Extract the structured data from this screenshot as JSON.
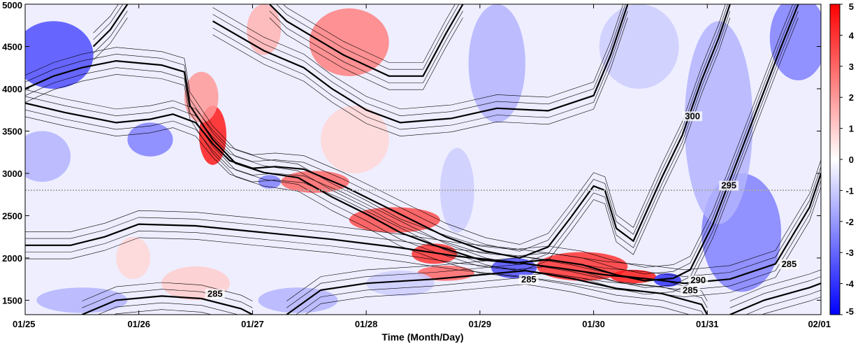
{
  "chart_data": {
    "type": "heatmap",
    "title": "",
    "xlabel": "Time (Month/Day)",
    "ylabel": "",
    "x_ticks": [
      "01/25",
      "01/26",
      "01/27",
      "01/28",
      "01/29",
      "01/30",
      "01/31",
      "02/01"
    ],
    "y_ticks": [
      1500,
      2000,
      2500,
      3000,
      3500,
      4000,
      4500,
      5000
    ],
    "xlim": [
      0,
      7
    ],
    "ylim": [
      1330,
      5000
    ],
    "colorbar": {
      "ticks": [
        5,
        4,
        3,
        2,
        1,
        0,
        -1,
        -2,
        -3,
        -4,
        -5
      ],
      "range": [
        -5,
        5
      ],
      "colors": {
        "positive": "#ff0000",
        "neutral": "#ffffff",
        "negative": "#0000ff"
      }
    },
    "reference_line": {
      "y": 2800,
      "style": "dotted",
      "color": "#aaaaaa"
    },
    "contour_labels": [
      {
        "text": "300",
        "x": 5.87,
        "y": 3650
      },
      {
        "text": "295",
        "x": 6.19,
        "y": 2830
      },
      {
        "text": "285",
        "x": 1.67,
        "y": 1550
      },
      {
        "text": "285",
        "x": 4.43,
        "y": 1720
      },
      {
        "text": "290",
        "x": 5.92,
        "y": 1710
      },
      {
        "text": "285",
        "x": 5.85,
        "y": 1590
      },
      {
        "text": "285",
        "x": 6.72,
        "y": 1900
      }
    ],
    "anomaly_blobs": [
      {
        "x": 1.65,
        "y": 3450,
        "rx": 0.12,
        "ry": 350,
        "value": 4.5
      },
      {
        "x": 1.55,
        "y": 3900,
        "rx": 0.15,
        "ry": 300,
        "value": 2
      },
      {
        "x": 2.1,
        "y": 4700,
        "rx": 0.15,
        "ry": 300,
        "value": 1.5
      },
      {
        "x": 2.85,
        "y": 4550,
        "rx": 0.35,
        "ry": 400,
        "value": 2.5
      },
      {
        "x": 2.55,
        "y": 2900,
        "rx": 0.3,
        "ry": 130,
        "value": 3
      },
      {
        "x": 3.25,
        "y": 2450,
        "rx": 0.4,
        "ry": 150,
        "value": 3.5
      },
      {
        "x": 3.6,
        "y": 2050,
        "rx": 0.2,
        "ry": 120,
        "value": 4
      },
      {
        "x": 3.7,
        "y": 1820,
        "rx": 0.25,
        "ry": 90,
        "value": 3
      },
      {
        "x": 4.9,
        "y": 1900,
        "rx": 0.4,
        "ry": 170,
        "value": 4
      },
      {
        "x": 5.35,
        "y": 1780,
        "rx": 0.2,
        "ry": 80,
        "value": 4.5
      },
      {
        "x": 0.95,
        "y": 2000,
        "rx": 0.15,
        "ry": 250,
        "value": 0.8
      },
      {
        "x": 1.5,
        "y": 1700,
        "rx": 0.3,
        "ry": 200,
        "value": 1
      },
      {
        "x": 2.9,
        "y": 3400,
        "rx": 0.3,
        "ry": 400,
        "value": 0.8
      },
      {
        "x": 0.25,
        "y": 4400,
        "rx": 0.35,
        "ry": 400,
        "value": -3.5
      },
      {
        "x": 1.1,
        "y": 3400,
        "rx": 0.2,
        "ry": 200,
        "value": -2.5
      },
      {
        "x": 0.15,
        "y": 3200,
        "rx": 0.25,
        "ry": 300,
        "value": -1.5
      },
      {
        "x": 2.15,
        "y": 2900,
        "rx": 0.1,
        "ry": 80,
        "value": -2.5
      },
      {
        "x": 4.3,
        "y": 1880,
        "rx": 0.2,
        "ry": 120,
        "value": -3.5
      },
      {
        "x": 5.65,
        "y": 1740,
        "rx": 0.12,
        "ry": 80,
        "value": -4
      },
      {
        "x": 6.3,
        "y": 2300,
        "rx": 0.35,
        "ry": 700,
        "value": -2.5
      },
      {
        "x": 6.1,
        "y": 3600,
        "rx": 0.3,
        "ry": 1200,
        "value": -1.5
      },
      {
        "x": 6.8,
        "y": 4600,
        "rx": 0.25,
        "ry": 500,
        "value": -2.5
      },
      {
        "x": 4.15,
        "y": 4300,
        "rx": 0.25,
        "ry": 700,
        "value": -1.5
      },
      {
        "x": 5.4,
        "y": 4500,
        "rx": 0.35,
        "ry": 500,
        "value": -1
      },
      {
        "x": 0.5,
        "y": 1500,
        "rx": 0.4,
        "ry": 150,
        "value": -1.5
      },
      {
        "x": 2.4,
        "y": 1500,
        "rx": 0.35,
        "ry": 150,
        "value": -1.5
      },
      {
        "x": 3.3,
        "y": 1700,
        "rx": 0.3,
        "ry": 150,
        "value": -1
      },
      {
        "x": 3.8,
        "y": 2800,
        "rx": 0.15,
        "ry": 500,
        "value": -1
      }
    ],
    "thick_contours": [
      [
        [
          0,
          3830
        ],
        [
          0.35,
          3720
        ],
        [
          0.8,
          3600
        ],
        [
          1.1,
          3640
        ],
        [
          1.3,
          3700
        ],
        [
          1.5,
          3600
        ],
        [
          1.65,
          3350
        ],
        [
          1.8,
          3150
        ],
        [
          2.0,
          3060
        ],
        [
          2.2,
          3080
        ],
        [
          2.45,
          3050
        ],
        [
          2.8,
          2850
        ],
        [
          3.1,
          2650
        ],
        [
          3.4,
          2450
        ],
        [
          3.7,
          2250
        ],
        [
          4.05,
          2080
        ],
        [
          4.35,
          2000
        ],
        [
          4.6,
          2130
        ],
        [
          4.8,
          2480
        ],
        [
          5.0,
          2850
        ],
        [
          5.1,
          2800
        ],
        [
          5.2,
          2350
        ],
        [
          5.35,
          2200
        ],
        [
          5.6,
          2950
        ],
        [
          5.78,
          3450
        ],
        [
          5.95,
          4100
        ],
        [
          6.1,
          4600
        ],
        [
          6.2,
          5000
        ]
      ],
      [
        [
          0,
          4000
        ],
        [
          0.25,
          4150
        ],
        [
          0.5,
          4250
        ],
        [
          0.8,
          4330
        ],
        [
          1.2,
          4280
        ],
        [
          1.4,
          4200
        ],
        [
          1.45,
          3800
        ],
        [
          1.65,
          3400
        ],
        [
          1.85,
          3120
        ],
        [
          2.1,
          3010
        ],
        [
          2.4,
          2950
        ],
        [
          2.7,
          2720
        ],
        [
          3.0,
          2520
        ],
        [
          3.3,
          2300
        ],
        [
          3.6,
          2150
        ],
        [
          4.0,
          1980
        ],
        [
          4.3,
          1940
        ],
        [
          4.6,
          1980
        ],
        [
          4.9,
          1920
        ],
        [
          5.2,
          1800
        ],
        [
          5.45,
          1730
        ],
        [
          5.7,
          1760
        ],
        [
          5.85,
          1860
        ],
        [
          6.05,
          2400
        ],
        [
          6.25,
          3100
        ],
        [
          6.45,
          3800
        ],
        [
          6.65,
          4500
        ],
        [
          6.8,
          5000
        ]
      ],
      [
        [
          0,
          2150
        ],
        [
          0.4,
          2150
        ],
        [
          0.7,
          2250
        ],
        [
          1.0,
          2400
        ],
        [
          1.5,
          2380
        ],
        [
          2.1,
          2300
        ],
        [
          2.7,
          2220
        ],
        [
          3.3,
          2120
        ],
        [
          3.8,
          2020
        ],
        [
          4.3,
          1950
        ],
        [
          4.7,
          1880
        ],
        [
          5.1,
          1800
        ],
        [
          5.5,
          1750
        ],
        [
          5.8,
          1700
        ],
        [
          6.2,
          1750
        ],
        [
          6.6,
          1930
        ],
        [
          6.9,
          2600
        ],
        [
          7.0,
          3000
        ]
      ],
      [
        [
          0.6,
          4500
        ],
        [
          0.75,
          4700
        ],
        [
          0.9,
          5000
        ]
      ],
      [
        [
          1.65,
          4800
        ],
        [
          2.1,
          4450
        ],
        [
          2.45,
          4250
        ],
        [
          2.7,
          4000
        ],
        [
          3.0,
          3750
        ],
        [
          3.3,
          3600
        ],
        [
          3.75,
          3650
        ],
        [
          4.15,
          3770
        ],
        [
          4.6,
          3740
        ],
        [
          5.0,
          3920
        ],
        [
          5.15,
          4400
        ],
        [
          5.3,
          5000
        ]
      ],
      [
        [
          2.15,
          5000
        ],
        [
          2.3,
          4800
        ],
        [
          2.55,
          4600
        ],
        [
          2.8,
          4400
        ],
        [
          3.2,
          4150
        ],
        [
          3.5,
          4150
        ],
        [
          3.7,
          4650
        ],
        [
          3.85,
          5000
        ]
      ],
      [
        [
          0.5,
          1330
        ],
        [
          0.8,
          1500
        ],
        [
          1.2,
          1550
        ],
        [
          1.55,
          1520
        ],
        [
          1.9,
          1400
        ],
        [
          2.0,
          1330
        ]
      ],
      [
        [
          2.3,
          1330
        ],
        [
          2.6,
          1620
        ],
        [
          3.0,
          1700
        ],
        [
          3.6,
          1750
        ],
        [
          4.0,
          1800
        ],
        [
          4.4,
          1850
        ],
        [
          4.8,
          1760
        ],
        [
          5.2,
          1640
        ],
        [
          5.6,
          1580
        ],
        [
          5.95,
          1450
        ],
        [
          6.0,
          1330
        ]
      ],
      [
        [
          6.2,
          1330
        ],
        [
          6.5,
          1500
        ],
        [
          6.9,
          1650
        ],
        [
          7.0,
          1700
        ]
      ]
    ]
  }
}
